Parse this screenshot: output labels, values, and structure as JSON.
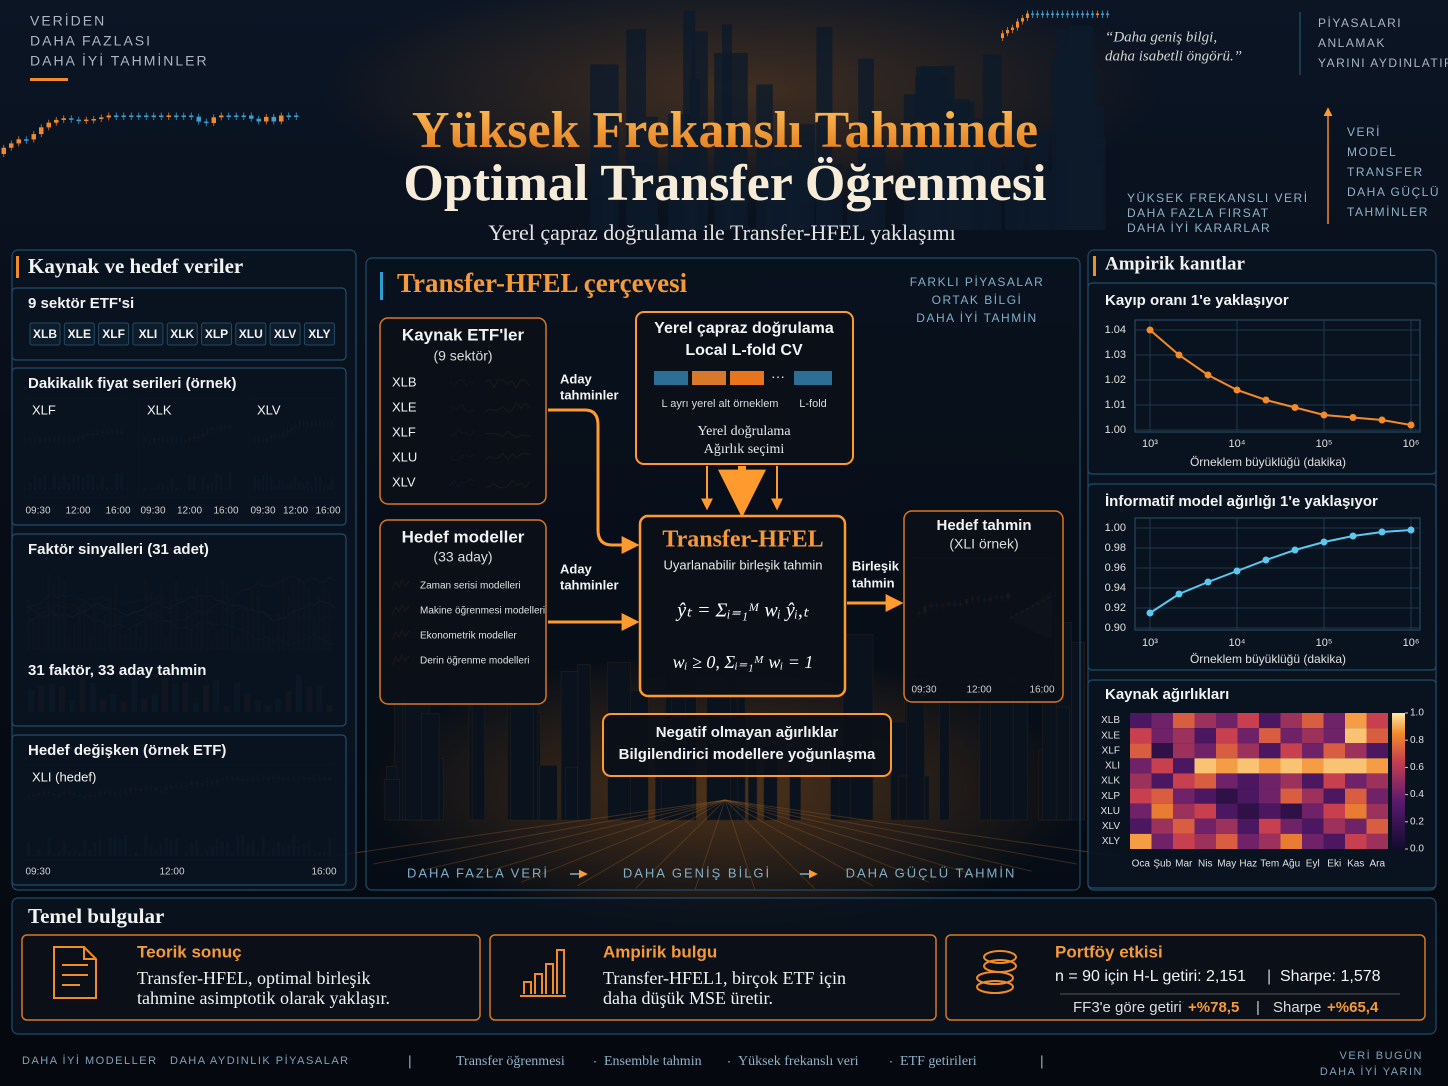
{
  "header": {
    "left_tagline": [
      "VERİDEN",
      "DAHA FAZLASI",
      "DAHA İYİ TAHMİNLER"
    ],
    "quote": [
      "“Daha geniş bilgi,",
      "daha isabetli öngörü.”"
    ],
    "right_tagline": [
      "PİYASALARI",
      "ANLAMAK",
      "YARINI AYDINLATIR"
    ],
    "side_steps": [
      "VERİ",
      "MODEL",
      "TRANSFER",
      "DAHA GÜÇLÜ",
      "TAHMİNLER"
    ],
    "mid_tagline": [
      "YÜKSEK FREKANSLI VERİ",
      "DAHA FAZLA FIRSAT",
      "DAHA İYİ KARARLAR"
    ],
    "title": [
      "Yüksek Frekanslı Tahminde",
      "Optimal Transfer Öğrenmesi"
    ],
    "subtitle": "Yerel çapraz doğrulama ile Transfer-HFEL yaklaşımı"
  },
  "left_panel": {
    "title": "Kaynak ve hedef veriler",
    "etf_box": {
      "title": "9 sektör ETF'si",
      "tickers": [
        "XLB",
        "XLE",
        "XLF",
        "XLI",
        "XLK",
        "XLP",
        "XLU",
        "XLV",
        "XLY"
      ]
    },
    "price_box": {
      "title": "Dakikalık fiyat serileri (örnek)",
      "series": [
        "XLF",
        "XLK",
        "XLV"
      ],
      "times": [
        "09:30",
        "12:00",
        "16:00"
      ]
    },
    "factor_box": {
      "title": "Faktör sinyalleri (31 adet)",
      "caption": "31 faktör, 33 aday tahmin"
    },
    "target_box": {
      "title": "Hedef değişken (örnek ETF)",
      "series": "XLI (hedef)",
      "times": [
        "09:30",
        "12:00",
        "16:00"
      ]
    }
  },
  "center_panel": {
    "title": "Transfer-HFEL çerçevesi",
    "tagline": [
      "FARKLI PİYASALAR",
      "ORTAK BİLGİ",
      "DAHA İYİ TAHMİN"
    ],
    "source_box": {
      "title": "Kaynak ETF'ler",
      "subtitle": "(9 sektör)",
      "tickers": [
        "XLB",
        "XLE",
        "XLF",
        "XLU",
        "XLV"
      ]
    },
    "candidate_labels": [
      [
        "Aday",
        "tahminler"
      ],
      [
        "Aday",
        "tahminler"
      ]
    ],
    "cv_box": {
      "title": [
        "Yerel çapraz doğrulama",
        "Local L-fold CV"
      ],
      "legend": [
        "L ayrı yerel alt örneklem",
        "L-fold"
      ],
      "caption": [
        "Yerel doğrulama",
        "Ağırlık seçimi"
      ]
    },
    "model_box": {
      "title": "Hedef modeller",
      "subtitle": "(33 aday)",
      "models": [
        "Zaman serisi modelleri",
        "Makine öğrenmesi modelleri",
        "Ekonometrik modeller",
        "Derin öğrenme modelleri"
      ]
    },
    "core_box": {
      "title": "Transfer-HFEL",
      "subtitle": "Uyarlanabilir birleşik tahmin",
      "formula": [
        "ŷₜ = Σᵢ₌₁ᴹ wᵢ ŷᵢ,ₜ",
        "wᵢ ≥ 0,   Σᵢ₌₁ᴹ wᵢ = 1"
      ]
    },
    "combined_label": [
      "Birleşik",
      "tahmin"
    ],
    "output_box": {
      "title": "Hedef tahmin",
      "subtitle": "(XLI örnek)",
      "times": [
        "09:30",
        "12:00",
        "16:00"
      ]
    },
    "weights_box": [
      "Negatif olmayan ağırlıklar",
      "Bilgilendirici modellere yoğunlaşma"
    ],
    "flow": [
      "DAHA FAZLA VERİ",
      "DAHA GENİŞ BİLGİ",
      "DAHA GÜÇLÜ TAHMİN"
    ]
  },
  "right_panel": {
    "title": "Ampirik kanıtlar",
    "loss_chart": {
      "type": "line",
      "title": "Kayıp oranı 1'e yaklaşıyor",
      "xlabel": "Örneklem büyüklüğü (dakika)",
      "log_x": true,
      "color": "#f58a2a",
      "x": [
        1000,
        2154,
        4642,
        10000,
        21544,
        46416,
        100000,
        215443,
        464159,
        1000000
      ],
      "values": [
        1.04,
        1.03,
        1.022,
        1.016,
        1.012,
        1.009,
        1.006,
        1.005,
        1.004,
        1.002
      ],
      "xlim": [
        1000,
        1000000
      ],
      "xticks": [
        {
          "value": 1000,
          "label": "10³"
        },
        {
          "value": 10000,
          "label": "10⁴"
        },
        {
          "value": 100000,
          "label": "10⁵"
        },
        {
          "value": 1000000,
          "label": "10⁶"
        }
      ],
      "ylim": [
        1.0,
        1.04
      ],
      "yticks": [
        {
          "value": 1,
          "label": "1.00"
        },
        1.01,
        1.02,
        1.03,
        1.04
      ]
    },
    "weight_chart": {
      "type": "line",
      "title": "İnformatif model ağırlığı 1'e yaklaşıyor",
      "xlabel": "Örneklem büyüklüğü (dakika)",
      "log_x": true,
      "color": "#5cc8f0",
      "x": [
        1000,
        2154,
        4642,
        10000,
        21544,
        46416,
        100000,
        215443,
        464159,
        1000000
      ],
      "values": [
        0.915,
        0.934,
        0.946,
        0.957,
        0.968,
        0.978,
        0.986,
        0.992,
        0.996,
        0.998
      ],
      "xlim": [
        1000,
        1000000
      ],
      "xticks": [
        {
          "value": 1000,
          "label": "10³"
        },
        {
          "value": 10000,
          "label": "10⁴"
        },
        {
          "value": 100000,
          "label": "10⁵"
        },
        {
          "value": 1000000,
          "label": "10⁶"
        }
      ],
      "ylim": [
        0.9,
        1.0
      ],
      "yticks": [
        {
          "value": 0.9,
          "label": "0.90"
        },
        0.92,
        0.94,
        0.96,
        0.98,
        {
          "value": 1,
          "label": "1.00"
        }
      ]
    },
    "heatmap": {
      "type": "heatmap",
      "title": "Kaynak ağırlıkları",
      "rows": [
        "XLB",
        "XLE",
        "XLF",
        "XLI",
        "XLK",
        "XLP",
        "XLU",
        "XLV",
        "XLY"
      ],
      "cols": [
        "Oca",
        "Şub",
        "Mar",
        "Nis",
        "May",
        "Haz",
        "Tem",
        "Ağu",
        "Eyl",
        "Eki",
        "Kas",
        "Ara"
      ],
      "values": [
        [
          0.2,
          0.3,
          0.6,
          0.4,
          0.3,
          0.5,
          0.2,
          0.4,
          0.6,
          0.3,
          0.8,
          0.5
        ],
        [
          0.5,
          0.3,
          0.4,
          0.2,
          0.5,
          0.3,
          0.6,
          0.3,
          0.4,
          0.3,
          0.9,
          0.6
        ],
        [
          0.6,
          0.1,
          0.4,
          0.3,
          0.6,
          0.4,
          0.2,
          0.5,
          0.3,
          0.6,
          0.4,
          0.2
        ],
        [
          0.3,
          0.5,
          0.2,
          0.9,
          0.8,
          0.9,
          0.8,
          0.9,
          0.8,
          0.9,
          0.9,
          0.8
        ],
        [
          0.4,
          0.2,
          0.5,
          0.6,
          0.3,
          0.2,
          0.3,
          0.4,
          0.2,
          0.5,
          0.3,
          0.4
        ],
        [
          0.5,
          0.6,
          0.3,
          0.2,
          0.1,
          0.2,
          0.3,
          0.6,
          0.4,
          0.2,
          0.6,
          0.3
        ],
        [
          0.3,
          0.7,
          0.4,
          0.5,
          0.2,
          0.1,
          0.2,
          0.1,
          0.3,
          0.5,
          0.7,
          0.4
        ],
        [
          0.2,
          0.4,
          0.6,
          0.3,
          0.4,
          0.2,
          0.5,
          0.3,
          0.2,
          0.4,
          0.3,
          0.6
        ],
        [
          0.8,
          0.3,
          0.5,
          0.4,
          0.6,
          0.3,
          0.4,
          0.7,
          0.3,
          0.2,
          0.5,
          0.4
        ]
      ],
      "vlim": [
        0,
        1
      ],
      "ticks": [
        {
          "value": 1,
          "label": "1.0"
        },
        0.8,
        0.6,
        0.4,
        0.2,
        {
          "value": 0,
          "label": "0.0"
        }
      ]
    }
  },
  "findings": {
    "title": "Temel bulgular",
    "cards": [
      {
        "title": "Teorik sonuç",
        "text": [
          "Transfer-HFEL, optimal birleşik",
          "tahmine asimptotik olarak yaklaşır."
        ]
      },
      {
        "title": "Ampirik bulgu",
        "text": [
          "Transfer-HFEL1, birçok ETF için",
          "daha düşük MSE üretir."
        ]
      },
      {
        "title": "Portföy etkisi",
        "text": [
          "n = 90 için H-L getiri: 2,151",
          "Sharpe: 1,578"
        ],
        "extra": [
          "FF3'e göre getiri",
          "+%78,5",
          "Sharpe",
          "+%65,4"
        ]
      }
    ]
  },
  "footer": {
    "left": [
      "DAHA İYİ MODELLER",
      "DAHA AYDINLIK PİYASALAR"
    ],
    "center": [
      "Transfer öğrenmesi",
      "Ensemble tahmin",
      "Yüksek frekanslı veri",
      "ETF getirileri"
    ],
    "right": [
      "VERİ BUGÜN",
      "DAHA İYİ YARIN"
    ]
  }
}
